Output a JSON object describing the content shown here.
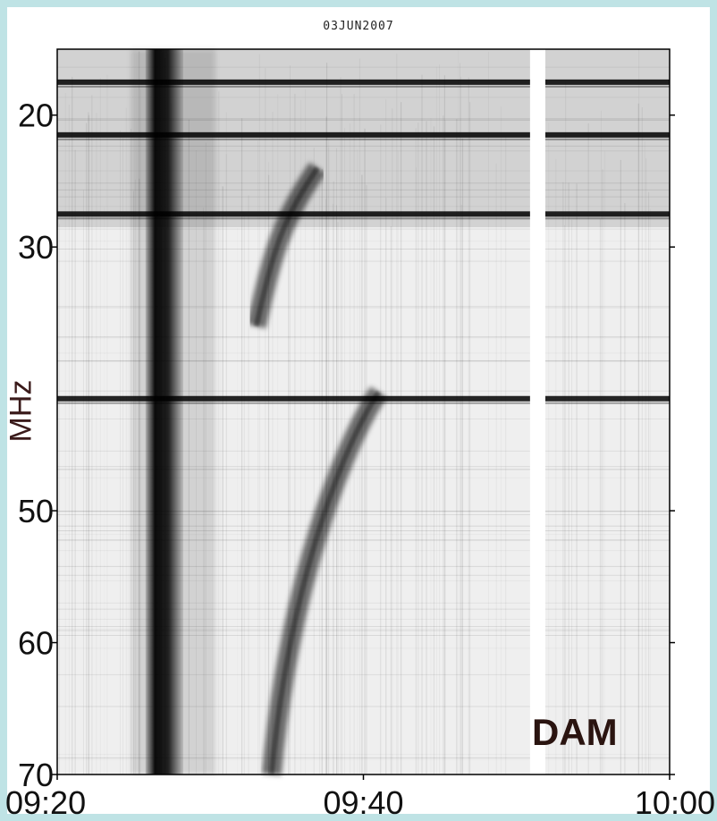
{
  "chart_data": {
    "type": "heatmap",
    "title": "03JUN2007",
    "ylabel": "MHz",
    "xlabel": "",
    "x_ticks": [
      "09:20",
      "09:40",
      "10:00"
    ],
    "y_ticks": [
      20,
      30,
      50,
      60,
      70
    ],
    "xlim": [
      "09:20",
      "10:00"
    ],
    "ylim": [
      15,
      70
    ],
    "y_axis_inverted": true,
    "colormap": "grayscale (dark = intense emission)",
    "data_gap": {
      "start": "09:51",
      "end": "09:52"
    },
    "features": [
      {
        "label": "intense broadband burst",
        "time_start": "09:26",
        "time_end": "09:28",
        "freq_low": 15,
        "freq_high": 70
      },
      {
        "label": "drifting type II lane (lower)",
        "time_start": "09:34",
        "time_end": "09:41",
        "freq_start": 70,
        "freq_end": 41
      },
      {
        "label": "drifting type II lane (upper)",
        "time_start": "09:33",
        "time_end": "09:37",
        "freq_start": 36,
        "freq_end": 24
      },
      {
        "label": "interference band",
        "freq": 17.5
      },
      {
        "label": "interference band",
        "freq": 21.5
      },
      {
        "label": "interference band",
        "freq": 27.5
      },
      {
        "label": "interference band",
        "freq": 41.5
      }
    ],
    "watermark": "DAM"
  }
}
